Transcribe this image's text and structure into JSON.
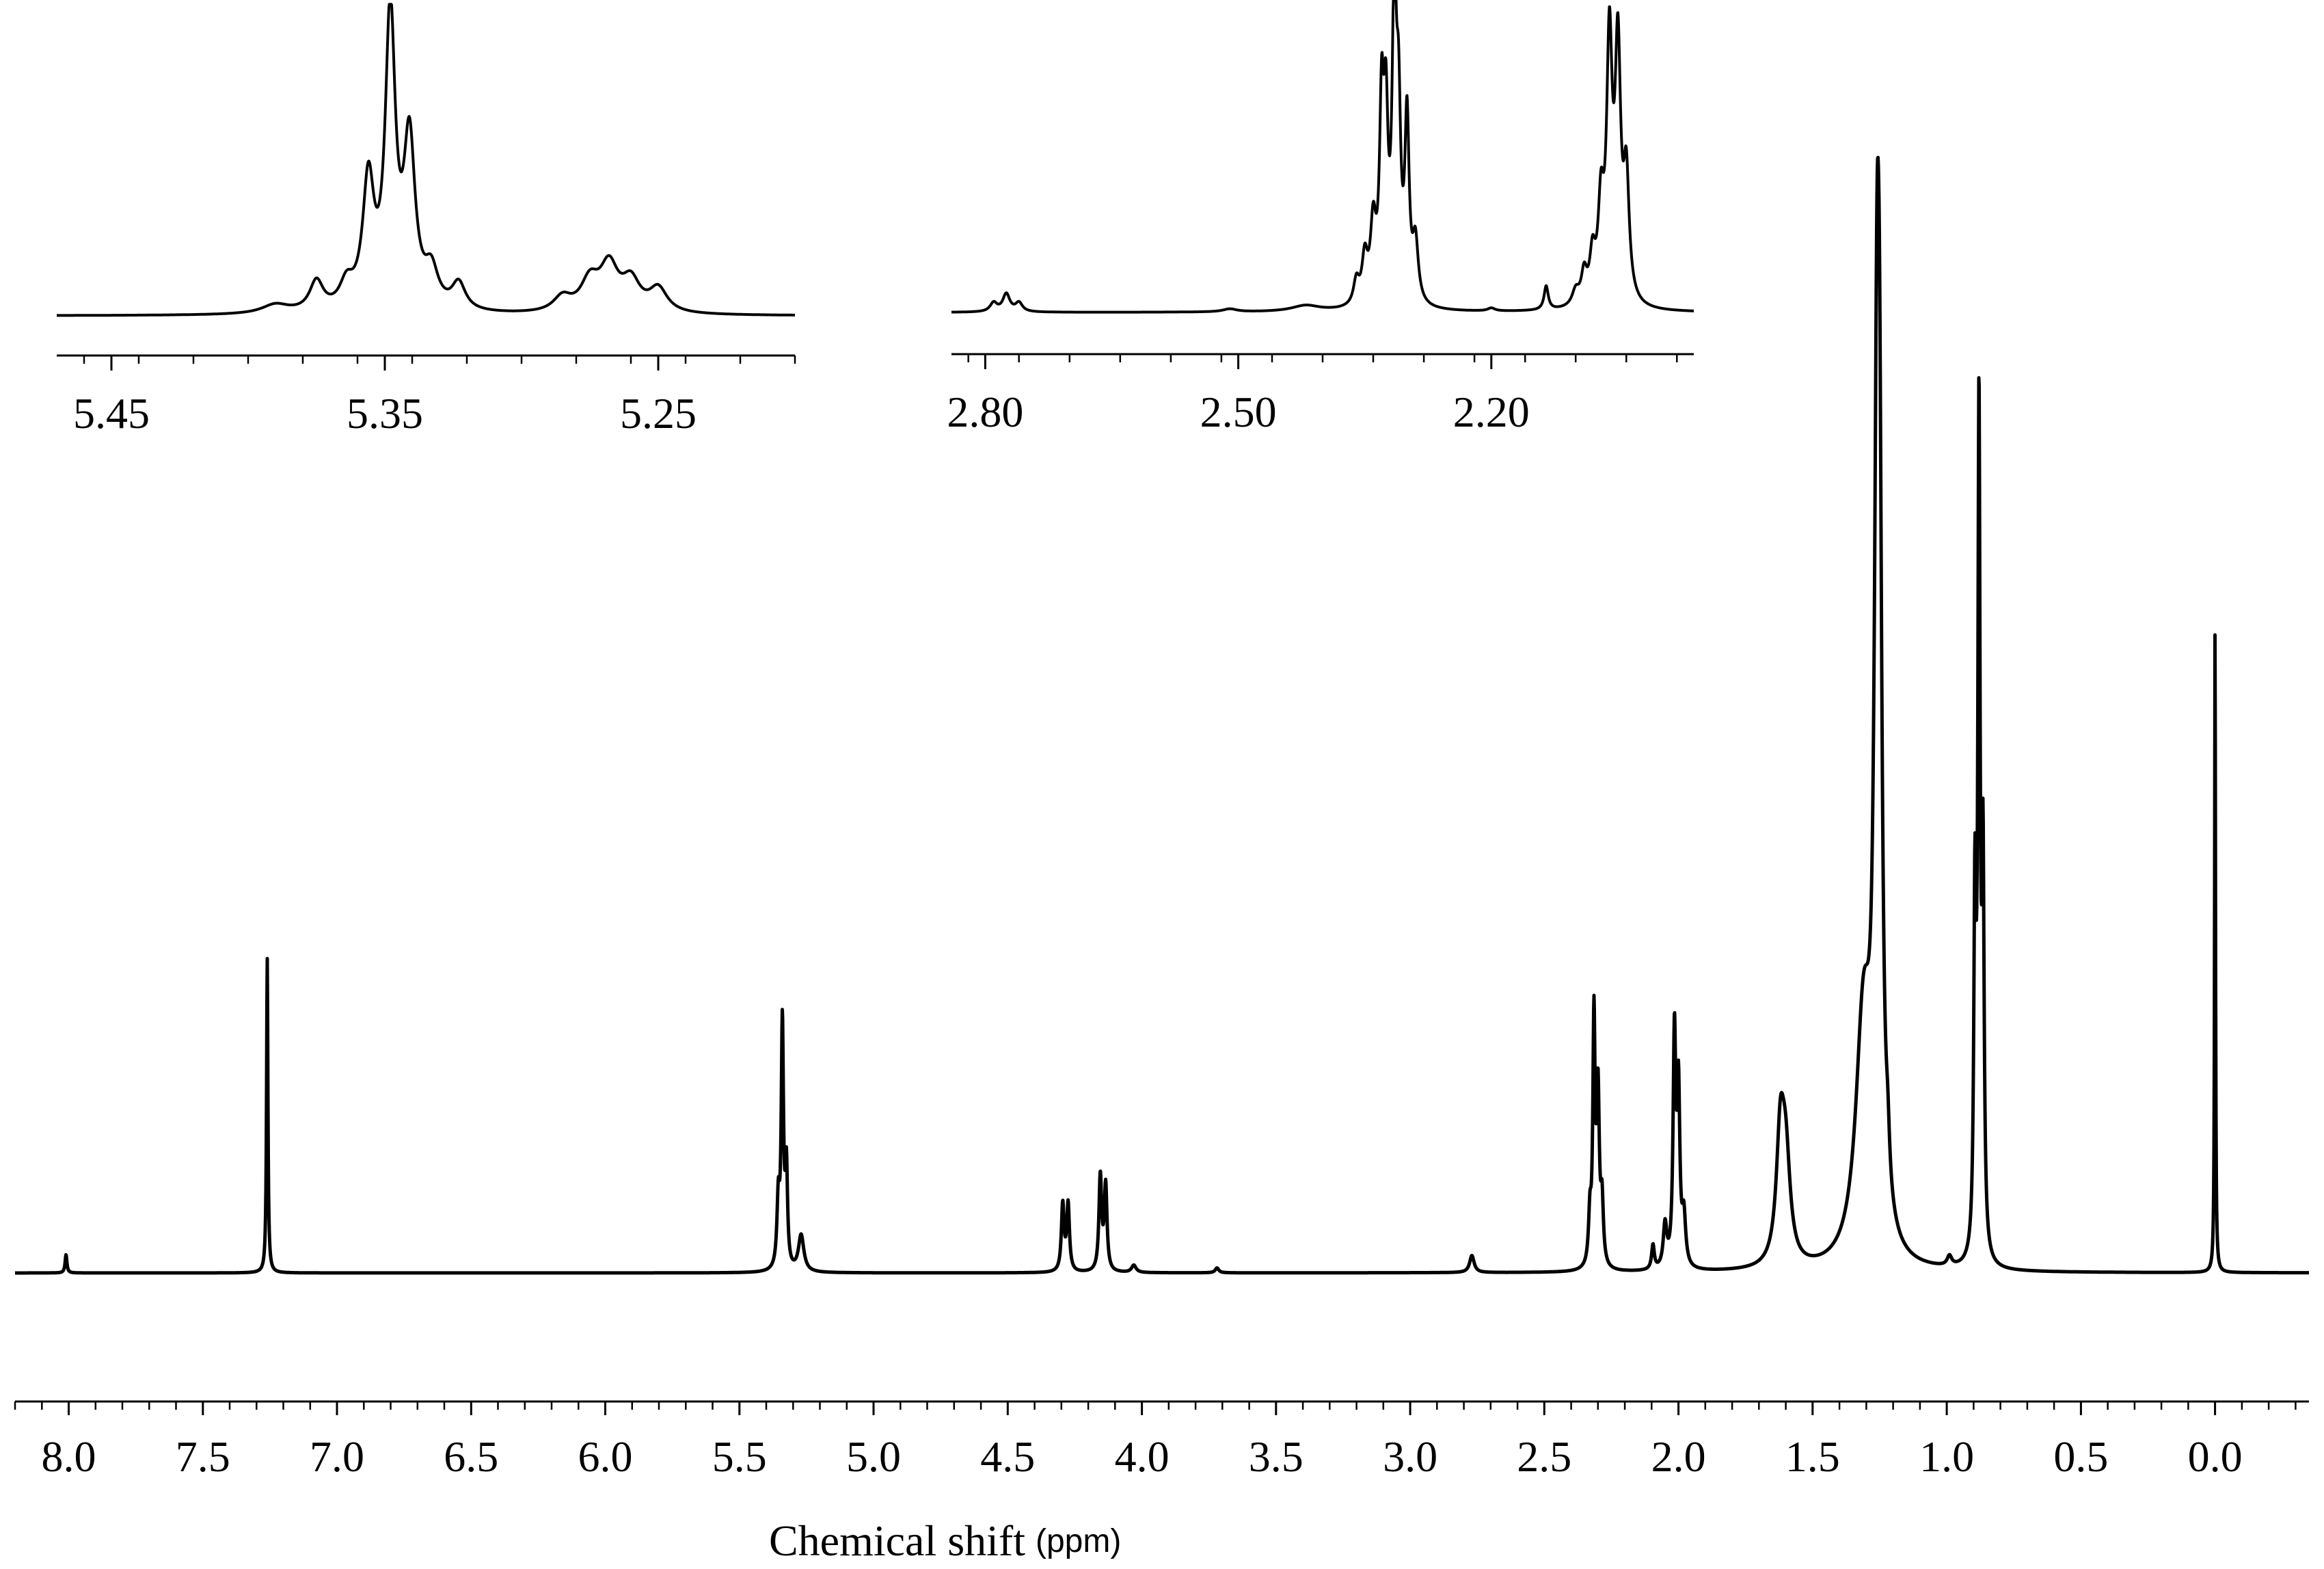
{
  "chart_data": [
    {
      "id": "main",
      "type": "line",
      "xlabel": "Chemical shift",
      "xunit": "(ppm)",
      "xlim": [
        8.2,
        -0.35
      ],
      "x_reversed": true,
      "ylim": [
        0,
        1
      ],
      "grid": false,
      "xticks": [
        "8.0",
        "7.5",
        "7.0",
        "6.5",
        "6.0",
        "5.5",
        "5.0",
        "4.5",
        "4.0",
        "3.5",
        "3.0",
        "2.5",
        "2.0",
        "1.5",
        "1.0",
        "0.5",
        "0.0"
      ],
      "minor_tick_step": 0.1,
      "series": [
        {
          "peaks": [
            {
              "x": 8.01,
              "y": 0.015,
              "w": 0.004
            },
            {
              "x": 7.26,
              "y": 0.258,
              "w": 0.003
            },
            {
              "x": 5.355,
              "y": 0.055,
              "w": 0.006
            },
            {
              "x": 5.34,
              "y": 0.2,
              "w": 0.005
            },
            {
              "x": 5.325,
              "y": 0.08,
              "w": 0.005
            },
            {
              "x": 5.27,
              "y": 0.03,
              "w": 0.012
            },
            {
              "x": 4.295,
              "y": 0.055,
              "w": 0.006
            },
            {
              "x": 4.275,
              "y": 0.055,
              "w": 0.006
            },
            {
              "x": 4.155,
              "y": 0.078,
              "w": 0.006
            },
            {
              "x": 4.135,
              "y": 0.07,
              "w": 0.006
            },
            {
              "x": 4.03,
              "y": 0.006,
              "w": 0.01
            },
            {
              "x": 3.72,
              "y": 0.004,
              "w": 0.008
            },
            {
              "x": 2.77,
              "y": 0.014,
              "w": 0.01
            },
            {
              "x": 2.33,
              "y": 0.04,
              "w": 0.006
            },
            {
              "x": 2.315,
              "y": 0.2,
              "w": 0.005
            },
            {
              "x": 2.3,
              "y": 0.14,
              "w": 0.006
            },
            {
              "x": 2.285,
              "y": 0.05,
              "w": 0.006
            },
            {
              "x": 2.095,
              "y": 0.02,
              "w": 0.006
            },
            {
              "x": 2.05,
              "y": 0.035,
              "w": 0.008
            },
            {
              "x": 2.015,
              "y": 0.19,
              "w": 0.006
            },
            {
              "x": 2.0,
              "y": 0.14,
              "w": 0.006
            },
            {
              "x": 1.98,
              "y": 0.04,
              "w": 0.008
            },
            {
              "x": 1.62,
              "y": 0.1,
              "w": 0.018
            },
            {
              "x": 1.6,
              "y": 0.08,
              "w": 0.02
            },
            {
              "x": 1.31,
              "y": 0.2,
              "w": 0.035
            },
            {
              "x": 1.26,
              "y": 0.62,
              "w": 0.012
            },
            {
              "x": 1.25,
              "y": 0.4,
              "w": 0.01
            },
            {
              "x": 1.22,
              "y": 0.035,
              "w": 0.008
            },
            {
              "x": 0.99,
              "y": 0.008,
              "w": 0.01
            },
            {
              "x": 0.895,
              "y": 0.28,
              "w": 0.005
            },
            {
              "x": 0.88,
              "y": 0.68,
              "w": 0.005
            },
            {
              "x": 0.865,
              "y": 0.31,
              "w": 0.005
            },
            {
              "x": 0.0,
              "y": 0.535,
              "w": 0.002
            }
          ]
        }
      ]
    },
    {
      "id": "inset-left",
      "type": "line",
      "xlim": [
        5.47,
        5.2
      ],
      "x_reversed": true,
      "ylim": [
        0,
        1
      ],
      "grid": false,
      "xticks": [
        "5.45",
        "5.35",
        "5.25"
      ],
      "minor_tick_step": 0.02,
      "series": [
        {
          "peaks": [
            {
              "x": 5.39,
              "y": 0.03,
              "w": 0.006
            },
            {
              "x": 5.375,
              "y": 0.1,
              "w": 0.003
            },
            {
              "x": 5.364,
              "y": 0.08,
              "w": 0.003
            },
            {
              "x": 5.356,
              "y": 0.42,
              "w": 0.0025
            },
            {
              "x": 5.348,
              "y": 0.98,
              "w": 0.0022
            },
            {
              "x": 5.341,
              "y": 0.55,
              "w": 0.0025
            },
            {
              "x": 5.333,
              "y": 0.12,
              "w": 0.003
            },
            {
              "x": 5.323,
              "y": 0.09,
              "w": 0.003
            },
            {
              "x": 5.285,
              "y": 0.05,
              "w": 0.004
            },
            {
              "x": 5.275,
              "y": 0.1,
              "w": 0.004
            },
            {
              "x": 5.268,
              "y": 0.15,
              "w": 0.004
            },
            {
              "x": 5.26,
              "y": 0.1,
              "w": 0.004
            },
            {
              "x": 5.25,
              "y": 0.08,
              "w": 0.004
            }
          ]
        }
      ]
    },
    {
      "id": "inset-right",
      "type": "line",
      "xlim": [
        2.84,
        1.96
      ],
      "x_reversed": true,
      "ylim": [
        0,
        1
      ],
      "grid": false,
      "xticks": [
        "2.80",
        "2.50",
        "2.20"
      ],
      "minor_tick_step": 0.06,
      "series": [
        {
          "peaks": [
            {
              "x": 2.79,
              "y": 0.03,
              "w": 0.005
            },
            {
              "x": 2.775,
              "y": 0.06,
              "w": 0.005
            },
            {
              "x": 2.76,
              "y": 0.03,
              "w": 0.005
            },
            {
              "x": 2.51,
              "y": 0.01,
              "w": 0.01
            },
            {
              "x": 2.42,
              "y": 0.02,
              "w": 0.02
            },
            {
              "x": 2.36,
              "y": 0.08,
              "w": 0.004
            },
            {
              "x": 2.35,
              "y": 0.15,
              "w": 0.004
            },
            {
              "x": 2.34,
              "y": 0.25,
              "w": 0.004
            },
            {
              "x": 2.33,
              "y": 0.62,
              "w": 0.003
            },
            {
              "x": 2.325,
              "y": 0.55,
              "w": 0.003
            },
            {
              "x": 2.315,
              "y": 1.0,
              "w": 0.003
            },
            {
              "x": 2.31,
              "y": 0.55,
              "w": 0.003
            },
            {
              "x": 2.3,
              "y": 0.6,
              "w": 0.003
            },
            {
              "x": 2.29,
              "y": 0.2,
              "w": 0.004
            },
            {
              "x": 2.2,
              "y": 0.01,
              "w": 0.005
            },
            {
              "x": 2.135,
              "y": 0.08,
              "w": 0.003
            },
            {
              "x": 2.1,
              "y": 0.05,
              "w": 0.005
            },
            {
              "x": 2.09,
              "y": 0.1,
              "w": 0.004
            },
            {
              "x": 2.08,
              "y": 0.15,
              "w": 0.004
            },
            {
              "x": 2.07,
              "y": 0.3,
              "w": 0.004
            },
            {
              "x": 2.06,
              "y": 0.85,
              "w": 0.004
            },
            {
              "x": 2.05,
              "y": 0.82,
              "w": 0.004
            },
            {
              "x": 2.04,
              "y": 0.4,
              "w": 0.004
            }
          ]
        }
      ]
    }
  ]
}
